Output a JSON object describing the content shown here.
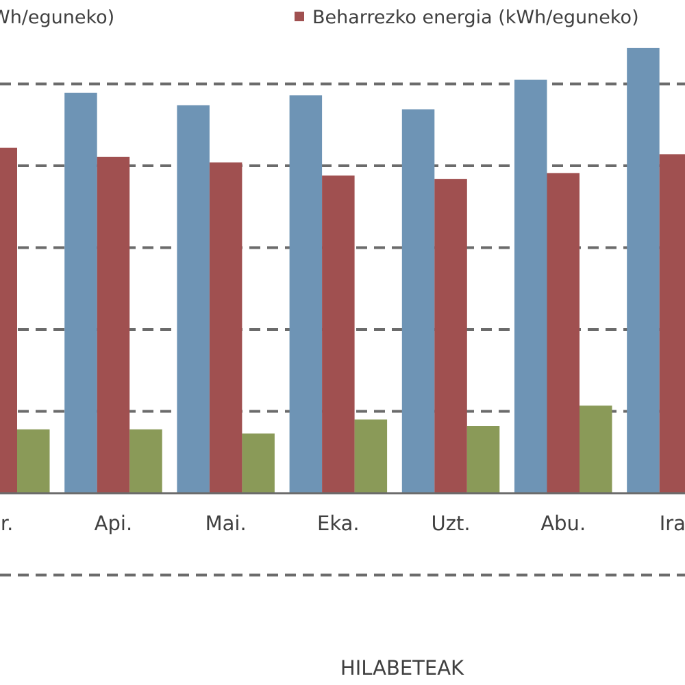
{
  "chart_data": {
    "type": "bar",
    "title": "",
    "xlabel": "HILABETEAK",
    "ylabel": "",
    "categories": [
      "Mar.",
      "Api.",
      "Mai.",
      "Eka.",
      "Uzt.",
      "Abu.",
      "Ira."
    ],
    "visible_category_labels": [
      "ar.",
      "Api.",
      "Mai.",
      "Eka.",
      "Uzt.",
      "Abu.",
      "Ira."
    ],
    "series": [
      {
        "name": "",
        "visible_name": "Wh/eguneko)",
        "color": "#6e94b5",
        "values": [
          null,
          4.89,
          4.74,
          4.86,
          4.69,
          5.05,
          5.44
        ]
      },
      {
        "name": "Beharrezko energia (kWh/eguneko)",
        "color": "#a05050",
        "values": [
          4.22,
          4.11,
          4.04,
          3.88,
          3.84,
          3.91,
          4.14
        ]
      },
      {
        "name": "",
        "color": "#8a9a58",
        "values": [
          0.78,
          0.78,
          0.73,
          0.9,
          0.82,
          1.07,
          null
        ]
      }
    ],
    "ylim": [
      -1,
      5.5
    ],
    "gridlines": [
      -1,
      1,
      2,
      3,
      4,
      5
    ],
    "grid": true,
    "legend_position": "top"
  }
}
